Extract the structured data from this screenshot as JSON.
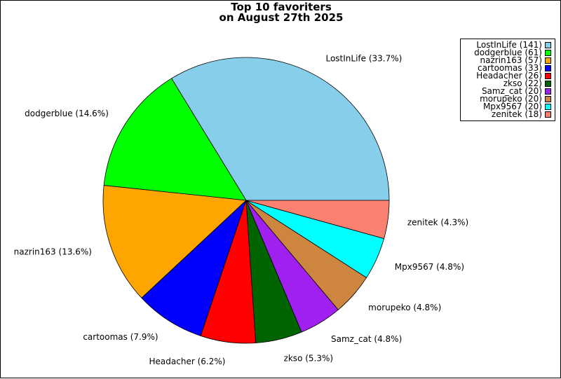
{
  "chart_data": {
    "type": "pie",
    "title": "Top 10 favoriters\non August 27th 2025",
    "slices": [
      {
        "name": "LostInLife",
        "value": 141,
        "percent_label": "33.7%",
        "color": "#87ceeb"
      },
      {
        "name": "dodgerblue",
        "value": 61,
        "percent_label": "14.6%",
        "color": "#00ff00"
      },
      {
        "name": "nazrin163",
        "value": 57,
        "percent_label": "13.6%",
        "color": "#ffa500"
      },
      {
        "name": "cartoomas",
        "value": 33,
        "percent_label": "7.9%",
        "color": "#0000ff"
      },
      {
        "name": "Headacher",
        "value": 26,
        "percent_label": "6.2%",
        "color": "#ff0000"
      },
      {
        "name": "zkso",
        "value": 22,
        "percent_label": "5.3%",
        "color": "#006400"
      },
      {
        "name": "Samz_cat",
        "value": 20,
        "percent_label": "4.8%",
        "color": "#a020f0"
      },
      {
        "name": "morupeko",
        "value": 20,
        "percent_label": "4.8%",
        "color": "#cd853f"
      },
      {
        "name": "Mpx9567",
        "value": 20,
        "percent_label": "4.8%",
        "color": "#00ffff"
      },
      {
        "name": "zenitek",
        "value": 18,
        "percent_label": "4.3%",
        "color": "#fa8072"
      }
    ],
    "legend_position": "top-right",
    "start_angle": "3 o'clock, counter-clockwise"
  }
}
